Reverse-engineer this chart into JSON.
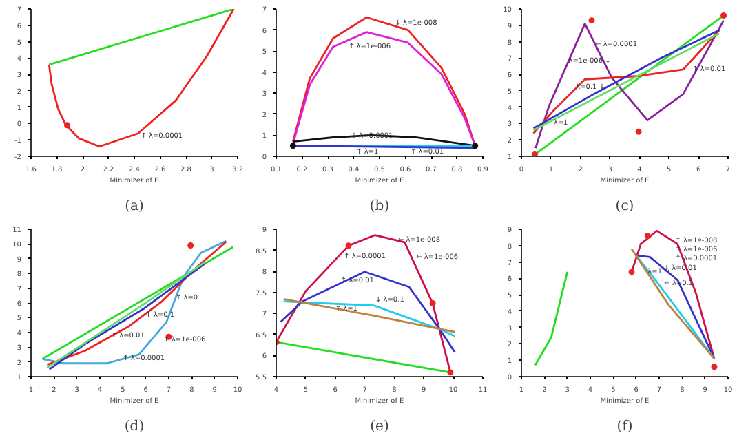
{
  "chart_data": [
    {
      "type": "line",
      "title": "(a)",
      "xlabel": "Minimizer of E",
      "marker": "none",
      "grid": false,
      "legend": false,
      "xlim": [
        1.6,
        3.2
      ],
      "ylim": [
        -2,
        7
      ],
      "xticks": [
        1.6,
        1.8,
        2,
        2.2,
        2.4,
        2.6,
        2.8,
        3,
        3.2
      ],
      "yticks": [
        -2,
        -1,
        0,
        1,
        2,
        3,
        4,
        5,
        6,
        7
      ],
      "series": [
        {
          "color": "#22dd22",
          "x": [
            1.74,
            3.17
          ],
          "values": [
            3.6,
            7
          ]
        },
        {
          "color": "#ee2222",
          "x": [
            1.74,
            1.76,
            1.81,
            1.87,
            1.97,
            2.13,
            2.43,
            2.72,
            2.96,
            3.17
          ],
          "values": [
            3.6,
            2.4,
            0.9,
            -0.1,
            -0.9,
            -1.4,
            -0.6,
            1.4,
            4.1,
            7
          ]
        },
        {
          "type": "scatter",
          "marker": "circle",
          "color": "#ee2222",
          "x": [
            1.88
          ],
          "values": [
            -0.1
          ]
        }
      ],
      "annotations": [
        {
          "text": "↑ λ=0.0001",
          "x": 2.45,
          "y": -0.8
        }
      ]
    },
    {
      "type": "line",
      "title": "(b)",
      "xlabel": "Minimizer of E",
      "marker": "none",
      "grid": false,
      "legend": false,
      "xlim": [
        0.1,
        0.9
      ],
      "ylim": [
        0,
        7
      ],
      "xticks": [
        0.1,
        0.2,
        0.3,
        0.4,
        0.5,
        0.6,
        0.7,
        0.8,
        0.9
      ],
      "yticks": [
        0,
        1,
        2,
        3,
        4,
        5,
        6,
        7
      ],
      "series": [
        {
          "color": "#ee2222",
          "x": [
            0.165,
            0.23,
            0.32,
            0.45,
            0.61,
            0.74,
            0.83,
            0.87
          ],
          "values": [
            0.7,
            3.7,
            5.6,
            6.6,
            6.0,
            4.2,
            2.0,
            0.5
          ]
        },
        {
          "color": "#dd22dd",
          "x": [
            0.165,
            0.23,
            0.32,
            0.45,
            0.61,
            0.74,
            0.83,
            0.87
          ],
          "values": [
            0.6,
            3.4,
            5.2,
            5.9,
            5.4,
            3.9,
            1.8,
            0.5
          ]
        },
        {
          "color": "#111111",
          "x": [
            0.165,
            0.32,
            0.47,
            0.64,
            0.87
          ],
          "values": [
            0.7,
            0.9,
            1.0,
            0.9,
            0.5
          ]
        },
        {
          "color": "#22ccee",
          "x": [
            0.165,
            0.87
          ],
          "values": [
            0.5,
            0.5
          ]
        },
        {
          "color": "#3333cc",
          "x": [
            0.165,
            0.87
          ],
          "values": [
            0.5,
            0.4
          ]
        },
        {
          "type": "scatter",
          "marker": "circle",
          "color": "#111111",
          "x": [
            0.165,
            0.87
          ],
          "values": [
            0.5,
            0.5
          ]
        }
      ],
      "annotations": [
        {
          "text": "↓ λ=1e-008",
          "x": 0.56,
          "y": 6.3
        },
        {
          "text": "↑ λ=1e-006",
          "x": 0.38,
          "y": 5.2
        },
        {
          "text": "↓ λ=0.0001",
          "x": 0.39,
          "y": 0.95
        },
        {
          "text": "↑ λ=1",
          "x": 0.41,
          "y": 0.2
        },
        {
          "text": "↑ λ=0.01",
          "x": 0.62,
          "y": 0.2
        }
      ]
    },
    {
      "type": "line",
      "title": "(c)",
      "xlabel": "Minimizer of E",
      "marker": "none",
      "grid": false,
      "legend": false,
      "xlim": [
        0,
        7
      ],
      "ylim": [
        1,
        10
      ],
      "xticks": [
        0,
        1,
        2,
        3,
        4,
        5,
        6,
        7
      ],
      "yticks": [
        1,
        2,
        3,
        4,
        5,
        6,
        7,
        8,
        9,
        10
      ],
      "series": [
        {
          "color": "#22dd22",
          "x": [
            0.45,
            6.85
          ],
          "values": [
            1.1,
            9.6
          ]
        },
        {
          "color": "#882299",
          "x": [
            0.48,
            0.94,
            2.15,
            3.06,
            4.27,
            5.48,
            6.85
          ],
          "values": [
            1.5,
            4.1,
            9.1,
            5.8,
            3.2,
            4.8,
            9.3
          ]
        },
        {
          "color": "#ee2222",
          "x": [
            0.41,
            1.09,
            2.15,
            3.97,
            5.48,
            6.7
          ],
          "values": [
            2.4,
            3.8,
            5.7,
            5.9,
            6.3,
            8.7
          ]
        },
        {
          "color": "#3333cc",
          "x": [
            0.41,
            2.45,
            4.73,
            6.7
          ],
          "values": [
            2.7,
            4.8,
            7.0,
            8.7
          ]
        },
        {
          "color": "#66dd66",
          "x": [
            0.41,
            6.7
          ],
          "values": [
            2.6,
            8.5
          ]
        },
        {
          "type": "scatter",
          "marker": "circle",
          "color": "#ee2222",
          "x": [
            0.45,
            2.38,
            3.97,
            6.85
          ],
          "values": [
            1.1,
            9.3,
            2.5,
            9.6
          ]
        }
      ],
      "annotations": [
        {
          "text": "λ=1e-006 ↓",
          "x": 1.6,
          "y": 6.8
        },
        {
          "text": "← λ=0.0001",
          "x": 2.5,
          "y": 7.8
        },
        {
          "text": "↑ λ=0.01",
          "x": 5.79,
          "y": 6.3
        },
        {
          "text": "λ=0.1 ↓",
          "x": 1.85,
          "y": 5.2
        },
        {
          "text": "λ=1",
          "x": 1.09,
          "y": 3.0
        }
      ]
    },
    {
      "type": "line",
      "title": "(d)",
      "xlabel": "Minimizer of E",
      "marker": "none",
      "grid": false,
      "legend": false,
      "xlim": [
        1,
        10
      ],
      "ylim": [
        1,
        11
      ],
      "xticks": [
        1,
        2,
        3,
        4,
        5,
        6,
        7,
        8,
        9,
        10
      ],
      "yticks": [
        1,
        2,
        3,
        4,
        5,
        6,
        7,
        8,
        9,
        10,
        11
      ],
      "series": [
        {
          "color": "#22dd22",
          "x": [
            1.5,
            9.8
          ],
          "values": [
            2.2,
            9.8
          ]
        },
        {
          "color": "#44a8e0",
          "x": [
            1.5,
            2.4,
            4.3,
            5.7,
            6.9,
            7.65,
            8.4,
            9.5
          ],
          "values": [
            2.2,
            1.9,
            1.9,
            2.5,
            4.7,
            7.8,
            9.4,
            10.2
          ]
        },
        {
          "color": "#ee2222",
          "x": [
            1.7,
            3.35,
            5.3,
            6.7,
            8.2,
            9.5
          ],
          "values": [
            1.8,
            2.75,
            4.45,
            6.1,
            8.4,
            10.15
          ]
        },
        {
          "color": "#3333cc",
          "x": [
            1.8,
            3.35,
            5.9,
            8.6
          ],
          "values": [
            1.5,
            3.2,
            5.6,
            8.7
          ]
        },
        {
          "color": "#66dd66",
          "x": [
            1.7,
            5.9,
            8.6
          ],
          "values": [
            1.6,
            5.9,
            8.8
          ]
        },
        {
          "type": "scatter",
          "marker": "circle",
          "color": "#ee2222",
          "x": [
            7.95,
            7.0
          ],
          "values": [
            9.9,
            3.7
          ]
        }
      ],
      "annotations": [
        {
          "text": "↑ λ=0.1",
          "x": 5.99,
          "y": 5.15
        },
        {
          "text": "↑ λ=0",
          "x": 7.3,
          "y": 6.35
        },
        {
          "text": "↑ λ=0.01",
          "x": 4.5,
          "y": 3.75
        },
        {
          "text": "↑ λ=1e-006",
          "x": 6.77,
          "y": 3.46
        },
        {
          "text": "↑ λ=0.0001",
          "x": 5.0,
          "y": 2.2
        }
      ]
    },
    {
      "type": "line",
      "title": "(e)",
      "xlabel": "Minimizer of E",
      "marker": "none",
      "grid": false,
      "legend": false,
      "xlim": [
        4,
        11
      ],
      "ylim": [
        5.5,
        9
      ],
      "xticks": [
        4,
        5,
        6,
        7,
        8,
        9,
        10,
        11
      ],
      "yticks": [
        5.5,
        6,
        6.5,
        7,
        7.5,
        8,
        8.5,
        9
      ],
      "series": [
        {
          "color": "#22dd22",
          "x": [
            4,
            9.9
          ],
          "values": [
            6.32,
            5.6
          ]
        },
        {
          "color": "#cc1144",
          "x": [
            4,
            5.0,
            6.45,
            7.35,
            8.35,
            9.3,
            9.9
          ],
          "values": [
            6.32,
            7.53,
            8.61,
            8.86,
            8.69,
            7.24,
            5.6
          ]
        },
        {
          "color": "#3333cc",
          "x": [
            4.15,
            4.9,
            7.0,
            8.5,
            9.6,
            10.05
          ],
          "values": [
            6.8,
            7.29,
            7.99,
            7.63,
            6.56,
            6.08
          ]
        },
        {
          "color": "#22ccee",
          "x": [
            4.25,
            5.0,
            7.3,
            9.6,
            10.05
          ],
          "values": [
            7.29,
            7.26,
            7.19,
            6.61,
            6.46
          ]
        },
        {
          "color": "#c08040",
          "x": [
            4.25,
            7.3,
            10.05
          ],
          "values": [
            7.34,
            6.95,
            6.56
          ]
        },
        {
          "type": "scatter",
          "marker": "circle",
          "color": "#ee2222",
          "x": [
            4,
            6.45,
            9.3,
            9.9
          ],
          "values": [
            6.32,
            8.61,
            7.24,
            5.6
          ]
        }
      ],
      "annotations": [
        {
          "text": "← λ=1e-008",
          "x": 8.13,
          "y": 8.74
        },
        {
          "text": "↑ λ=0.0001",
          "x": 6.29,
          "y": 8.35
        },
        {
          "text": "← λ=1e-006",
          "x": 8.74,
          "y": 8.33
        },
        {
          "text": "↑ λ=0.01",
          "x": 6.19,
          "y": 7.77
        },
        {
          "text": "↓ λ=0.1",
          "x": 7.36,
          "y": 7.31
        },
        {
          "text": "↑ λ=1",
          "x": 6.0,
          "y": 7.1
        }
      ]
    },
    {
      "type": "line",
      "title": "(f)",
      "xlabel": "Minimizer of E",
      "marker": "none",
      "grid": false,
      "legend": false,
      "xlim": [
        1,
        10
      ],
      "ylim": [
        0,
        9
      ],
      "xticks": [
        1,
        2,
        3,
        4,
        5,
        6,
        7,
        8,
        9,
        10
      ],
      "yticks": [
        0,
        1,
        2,
        3,
        4,
        5,
        6,
        7,
        8,
        9
      ],
      "series": [
        {
          "color": "#22dd22",
          "x": [
            1.6,
            2.3,
            3.0
          ],
          "values": [
            0.7,
            2.4,
            6.4
          ]
        },
        {
          "color": "#cc1144",
          "x": [
            5.8,
            6.2,
            6.9,
            7.8,
            8.6,
            9.4
          ],
          "values": [
            6.4,
            8.1,
            8.9,
            8.1,
            5.1,
            1.1
          ]
        },
        {
          "color": "#3333cc",
          "x": [
            6.0,
            6.6,
            7.8,
            9.4
          ],
          "values": [
            7.4,
            7.3,
            5.9,
            1.1
          ]
        },
        {
          "color": "#22ccee",
          "x": [
            6.0,
            7.0,
            9.4
          ],
          "values": [
            7.4,
            5.6,
            1.1
          ]
        },
        {
          "color": "#c08040",
          "x": [
            5.8,
            7.4,
            9.4
          ],
          "values": [
            7.8,
            4.4,
            1.1
          ]
        },
        {
          "type": "scatter",
          "marker": "circle",
          "color": "#ee2222",
          "x": [
            5.8,
            6.5,
            9.4
          ],
          "values": [
            6.4,
            8.6,
            0.6
          ]
        }
      ],
      "annotations": [
        {
          "text": "↑ λ=1e-008",
          "x": 7.7,
          "y": 8.3
        },
        {
          "text": "↓ λ=0.01",
          "x": 7.2,
          "y": 6.6
        },
        {
          "text": "↑ λ=1e-006",
          "x": 7.7,
          "y": 7.75
        },
        {
          "text": "↑ λ=0.0001",
          "x": 7.7,
          "y": 7.2
        },
        {
          "text": "λ=1 →",
          "x": 6.5,
          "y": 6.4
        },
        {
          "text": "← λ=0.1",
          "x": 7.22,
          "y": 5.66
        }
      ]
    }
  ]
}
